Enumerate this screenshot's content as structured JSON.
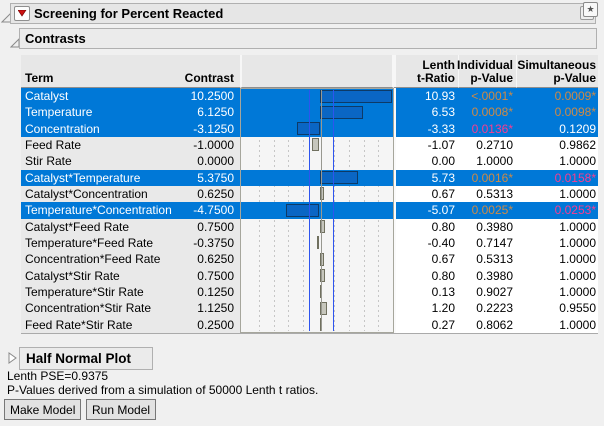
{
  "window": {
    "title": "Screening for Percent Reacted"
  },
  "sections": {
    "contrasts": "Contrasts",
    "half_normal": "Half Normal Plot"
  },
  "icons": {
    "red_triangle_menu": "red inverted triangle",
    "window_star": "★",
    "disclosure_open": "open triangle",
    "disclosure_collapsed": "right triangle"
  },
  "colors": {
    "highlight": "#0078d7",
    "orange": "#cd8a46",
    "pink": "#fa3c90",
    "bar_blue": "#0a66c4",
    "bar_gray": "#c6c6bc",
    "refline_blue": "#2e55ef"
  },
  "table": {
    "columns": [
      "Term",
      "Contrast",
      "",
      "Lenth\nt-Ratio",
      "Individual\np-Value",
      "Simultaneous\np-Value"
    ],
    "rows": [
      {
        "term": "Catalyst",
        "contrast": "10.2500",
        "value": 10.25,
        "t_ratio": "10.93",
        "p_individual": "<.0001*",
        "p_ind_color": "orange",
        "p_simultaneous": "0.0009*",
        "p_sim_color": "orange",
        "highlighted": true
      },
      {
        "term": "Temperature",
        "contrast": "6.1250",
        "value": 6.125,
        "t_ratio": "6.53",
        "p_individual": "0.0008*",
        "p_ind_color": "orange",
        "p_simultaneous": "0.0098*",
        "p_sim_color": "orange",
        "highlighted": true
      },
      {
        "term": "Concentration",
        "contrast": "-3.1250",
        "value": -3.125,
        "t_ratio": "-3.33",
        "p_individual": "0.0136*",
        "p_ind_color": "pink",
        "p_simultaneous": "0.1209",
        "p_sim_color": null,
        "highlighted": true
      },
      {
        "term": "Feed Rate",
        "contrast": "-1.0000",
        "value": -1.0,
        "t_ratio": "-1.07",
        "p_individual": "0.2710",
        "p_ind_color": null,
        "p_simultaneous": "0.9862",
        "p_sim_color": null,
        "highlighted": false
      },
      {
        "term": "Stir Rate",
        "contrast": "0.0000",
        "value": 0.0,
        "t_ratio": "0.00",
        "p_individual": "1.0000",
        "p_ind_color": null,
        "p_simultaneous": "1.0000",
        "p_sim_color": null,
        "highlighted": false
      },
      {
        "term": "Catalyst*Temperature",
        "contrast": "5.3750",
        "value": 5.375,
        "t_ratio": "5.73",
        "p_individual": "0.0016*",
        "p_ind_color": "orange",
        "p_simultaneous": "0.0158*",
        "p_sim_color": "pink",
        "highlighted": true
      },
      {
        "term": "Catalyst*Concentration",
        "contrast": "0.6250",
        "value": 0.625,
        "t_ratio": "0.67",
        "p_individual": "0.5313",
        "p_ind_color": null,
        "p_simultaneous": "1.0000",
        "p_sim_color": null,
        "highlighted": false
      },
      {
        "term": "Temperature*Concentration",
        "contrast": "-4.7500",
        "value": -4.75,
        "t_ratio": "-5.07",
        "p_individual": "0.0025*",
        "p_ind_color": "orange",
        "p_simultaneous": "0.0253*",
        "p_sim_color": "pink",
        "highlighted": true
      },
      {
        "term": "Catalyst*Feed Rate",
        "contrast": "0.7500",
        "value": 0.75,
        "t_ratio": "0.80",
        "p_individual": "0.3980",
        "p_ind_color": null,
        "p_simultaneous": "1.0000",
        "p_sim_color": null,
        "highlighted": false
      },
      {
        "term": "Temperature*Feed Rate",
        "contrast": "-0.3750",
        "value": -0.375,
        "t_ratio": "-0.40",
        "p_individual": "0.7147",
        "p_ind_color": null,
        "p_simultaneous": "1.0000",
        "p_sim_color": null,
        "highlighted": false
      },
      {
        "term": "Concentration*Feed Rate",
        "contrast": "0.6250",
        "value": 0.625,
        "t_ratio": "0.67",
        "p_individual": "0.5313",
        "p_ind_color": null,
        "p_simultaneous": "1.0000",
        "p_sim_color": null,
        "highlighted": false
      },
      {
        "term": "Catalyst*Stir Rate",
        "contrast": "0.7500",
        "value": 0.75,
        "t_ratio": "0.80",
        "p_individual": "0.3980",
        "p_ind_color": null,
        "p_simultaneous": "1.0000",
        "p_sim_color": null,
        "highlighted": false
      },
      {
        "term": "Temperature*Stir Rate",
        "contrast": "0.1250",
        "value": 0.125,
        "t_ratio": "0.13",
        "p_individual": "0.9027",
        "p_ind_color": null,
        "p_simultaneous": "1.0000",
        "p_sim_color": null,
        "highlighted": false
      },
      {
        "term": "Concentration*Stir Rate",
        "contrast": "1.1250",
        "value": 1.125,
        "t_ratio": "1.20",
        "p_individual": "0.2223",
        "p_ind_color": null,
        "p_simultaneous": "0.9550",
        "p_sim_color": null,
        "highlighted": false
      },
      {
        "term": "Feed Rate*Stir Rate",
        "contrast": "0.2500",
        "value": 0.25,
        "t_ratio": "0.27",
        "p_individual": "0.8062",
        "p_ind_color": null,
        "p_simultaneous": "1.0000",
        "p_sim_color": null,
        "highlighted": false
      }
    ]
  },
  "footer": {
    "lenth_pse": "Lenth PSE=0.9375",
    "pvalue_note": "P-Values derived from a simulation of 50000 Lenth t ratios.",
    "make_model": "Make Model",
    "run_model": "Run Model"
  }
}
